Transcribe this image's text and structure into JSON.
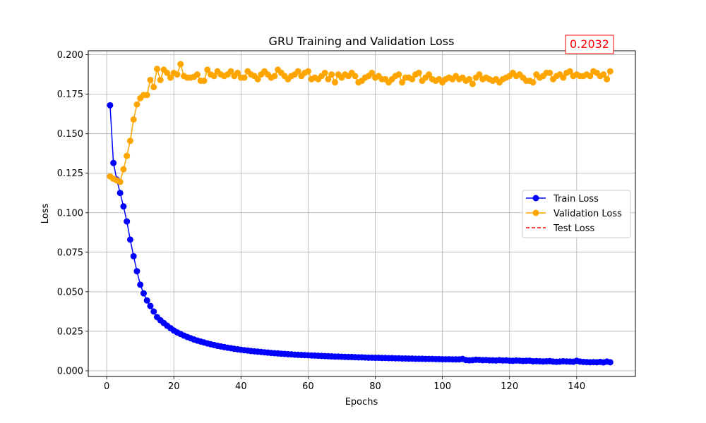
{
  "chart_data": {
    "type": "line",
    "title": "GRU Training and Validation Loss",
    "xlabel": "Epochs",
    "ylabel": "Loss",
    "xlim": [
      -5.5,
      157.5
    ],
    "ylim": [
      -0.0036,
      0.2025
    ],
    "xticks": [
      0,
      20,
      40,
      60,
      80,
      100,
      120,
      140
    ],
    "yticks": [
      0.0,
      0.025,
      0.05,
      0.075,
      0.1,
      0.125,
      0.15,
      0.175,
      0.2
    ],
    "ytick_labels": [
      "0.000",
      "0.025",
      "0.050",
      "0.075",
      "0.100",
      "0.125",
      "0.150",
      "0.175",
      "0.200"
    ],
    "grid": true,
    "legend_position": "center-right",
    "annotation": {
      "text": "0.2032",
      "color": "#ff0000"
    },
    "series": [
      {
        "name": "Train Loss",
        "color": "#0000ff",
        "marker": "circle",
        "linestyle": "solid",
        "x": [
          1,
          2,
          3,
          4,
          5,
          6,
          7,
          8,
          9,
          10,
          11,
          12,
          13,
          14,
          15,
          16,
          17,
          18,
          19,
          20,
          21,
          22,
          23,
          24,
          25,
          26,
          27,
          28,
          29,
          30,
          31,
          32,
          33,
          34,
          35,
          36,
          37,
          38,
          39,
          40,
          41,
          42,
          43,
          44,
          45,
          46,
          47,
          48,
          49,
          50,
          51,
          52,
          53,
          54,
          55,
          56,
          57,
          58,
          59,
          60,
          61,
          62,
          63,
          64,
          65,
          66,
          67,
          68,
          69,
          70,
          71,
          72,
          73,
          74,
          75,
          76,
          77,
          78,
          79,
          80,
          81,
          82,
          83,
          84,
          85,
          86,
          87,
          88,
          89,
          90,
          91,
          92,
          93,
          94,
          95,
          96,
          97,
          98,
          99,
          100,
          101,
          102,
          103,
          104,
          105,
          106,
          107,
          108,
          109,
          110,
          111,
          112,
          113,
          114,
          115,
          116,
          117,
          118,
          119,
          120,
          121,
          122,
          123,
          124,
          125,
          126,
          127,
          128,
          129,
          130,
          131,
          132,
          133,
          134,
          135,
          136,
          137,
          138,
          139,
          140,
          141,
          142,
          143,
          144,
          145,
          146,
          147,
          148,
          149,
          150
        ],
        "values": [
          0.168,
          0.1315,
          0.121,
          0.1125,
          0.104,
          0.0945,
          0.083,
          0.0725,
          0.063,
          0.0545,
          0.049,
          0.0445,
          0.041,
          0.0375,
          0.034,
          0.032,
          0.0302,
          0.0285,
          0.027,
          0.0255,
          0.0243,
          0.0233,
          0.0223,
          0.0214,
          0.0206,
          0.0198,
          0.0191,
          0.0185,
          0.0179,
          0.0173,
          0.0168,
          0.0163,
          0.0158,
          0.0154,
          0.015,
          0.0146,
          0.0143,
          0.0139,
          0.0136,
          0.0133,
          0.013,
          0.0128,
          0.0125,
          0.0123,
          0.0121,
          0.0119,
          0.0117,
          0.0115,
          0.0113,
          0.0111,
          0.011,
          0.0108,
          0.0107,
          0.0105,
          0.0104,
          0.0102,
          0.0101,
          0.01,
          0.0099,
          0.0098,
          0.0097,
          0.0096,
          0.0095,
          0.0094,
          0.0093,
          0.0092,
          0.0091,
          0.009,
          0.009,
          0.0089,
          0.0088,
          0.0087,
          0.0087,
          0.0086,
          0.0085,
          0.0085,
          0.0084,
          0.0083,
          0.0083,
          0.0082,
          0.0082,
          0.0081,
          0.0081,
          0.008,
          0.008,
          0.0079,
          0.0079,
          0.0078,
          0.0078,
          0.0077,
          0.0077,
          0.0076,
          0.0076,
          0.0076,
          0.0075,
          0.0075,
          0.0075,
          0.0074,
          0.0074,
          0.0073,
          0.0073,
          0.0073,
          0.0072,
          0.0072,
          0.0072,
          0.0075,
          0.0068,
          0.0066,
          0.0067,
          0.007,
          0.0069,
          0.0067,
          0.0068,
          0.0066,
          0.0066,
          0.0065,
          0.0067,
          0.0065,
          0.0066,
          0.0064,
          0.0063,
          0.0065,
          0.0064,
          0.0062,
          0.0063,
          0.0064,
          0.006,
          0.0061,
          0.006,
          0.0059,
          0.006,
          0.0061,
          0.0058,
          0.0057,
          0.0058,
          0.006,
          0.0059,
          0.0058,
          0.0057,
          0.0063,
          0.0058,
          0.0056,
          0.0055,
          0.0054,
          0.0055,
          0.0054,
          0.0056,
          0.0053,
          0.0058,
          0.0054
        ]
      },
      {
        "name": "Validation Loss",
        "color": "#ffa500",
        "marker": "circle",
        "linestyle": "solid",
        "x": [
          1,
          2,
          3,
          4,
          5,
          6,
          7,
          8,
          9,
          10,
          11,
          12,
          13,
          14,
          15,
          16,
          17,
          18,
          19,
          20,
          21,
          22,
          23,
          24,
          25,
          26,
          27,
          28,
          29,
          30,
          31,
          32,
          33,
          34,
          35,
          36,
          37,
          38,
          39,
          40,
          41,
          42,
          43,
          44,
          45,
          46,
          47,
          48,
          49,
          50,
          51,
          52,
          53,
          54,
          55,
          56,
          57,
          58,
          59,
          60,
          61,
          62,
          63,
          64,
          65,
          66,
          67,
          68,
          69,
          70,
          71,
          72,
          73,
          74,
          75,
          76,
          77,
          78,
          79,
          80,
          81,
          82,
          83,
          84,
          85,
          86,
          87,
          88,
          89,
          90,
          91,
          92,
          93,
          94,
          95,
          96,
          97,
          98,
          99,
          100,
          101,
          102,
          103,
          104,
          105,
          106,
          107,
          108,
          109,
          110,
          111,
          112,
          113,
          114,
          115,
          116,
          117,
          118,
          119,
          120,
          121,
          122,
          123,
          124,
          125,
          126,
          127,
          128,
          129,
          130,
          131,
          132,
          133,
          134,
          135,
          136,
          137,
          138,
          139,
          140,
          141,
          142,
          143,
          144,
          145,
          146,
          147,
          148,
          149,
          150
        ],
        "values": [
          0.123,
          0.1215,
          0.1205,
          0.1195,
          0.1275,
          0.136,
          0.1455,
          0.159,
          0.1685,
          0.1725,
          0.1745,
          0.1745,
          0.184,
          0.1795,
          0.191,
          0.184,
          0.1905,
          0.1885,
          0.1855,
          0.1885,
          0.1875,
          0.194,
          0.1865,
          0.1855,
          0.1855,
          0.186,
          0.1875,
          0.1835,
          0.1835,
          0.1905,
          0.1875,
          0.1865,
          0.1895,
          0.1875,
          0.1865,
          0.1875,
          0.1895,
          0.1865,
          0.1885,
          0.1855,
          0.1855,
          0.1895,
          0.1875,
          0.1865,
          0.1845,
          0.1875,
          0.1895,
          0.1875,
          0.1855,
          0.1865,
          0.1905,
          0.1885,
          0.1865,
          0.1845,
          0.1865,
          0.1875,
          0.1895,
          0.1865,
          0.1885,
          0.1895,
          0.1845,
          0.1855,
          0.1845,
          0.1865,
          0.1885,
          0.1845,
          0.1875,
          0.1825,
          0.1875,
          0.1855,
          0.1875,
          0.1865,
          0.1885,
          0.1865,
          0.1825,
          0.1835,
          0.1855,
          0.1865,
          0.1885,
          0.1855,
          0.1865,
          0.1845,
          0.1845,
          0.1825,
          0.1845,
          0.1865,
          0.1875,
          0.1825,
          0.1855,
          0.1855,
          0.1845,
          0.1875,
          0.1885,
          0.1835,
          0.1855,
          0.1875,
          0.1845,
          0.1835,
          0.1845,
          0.1825,
          0.1845,
          0.1855,
          0.1845,
          0.1865,
          0.1845,
          0.1855,
          0.1835,
          0.1845,
          0.1815,
          0.1855,
          0.1875,
          0.1845,
          0.1855,
          0.1845,
          0.1835,
          0.1845,
          0.1825,
          0.1845,
          0.1855,
          0.1865,
          0.1885,
          0.1865,
          0.1875,
          0.1855,
          0.1835,
          0.1835,
          0.1825,
          0.1875,
          0.1855,
          0.1865,
          0.1885,
          0.1885,
          0.1845,
          0.1865,
          0.1875,
          0.1855,
          0.1885,
          0.1895,
          0.1865,
          0.1875,
          0.1865,
          0.1865,
          0.1875,
          0.1865,
          0.1895,
          0.1885,
          0.1865,
          0.1875,
          0.1845,
          0.1895
        ]
      },
      {
        "name": "Test Loss",
        "color": "#ff0000",
        "marker": "none",
        "linestyle": "dashed",
        "x": [],
        "values": []
      }
    ]
  }
}
